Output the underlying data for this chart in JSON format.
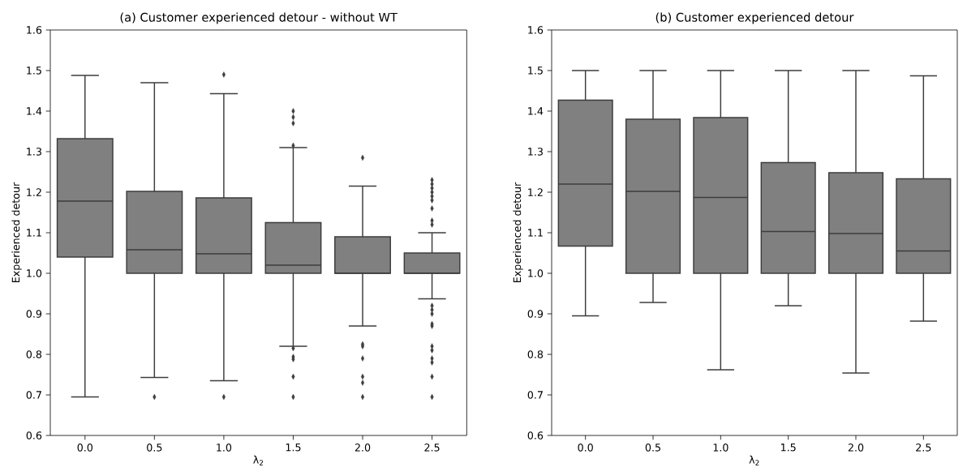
{
  "chart_data": [
    {
      "type": "box",
      "title": "(a) Customer experienced detour - without WT",
      "xlabel": "λ$_{2}$",
      "ylabel": "Experienced detour",
      "categories": [
        "0.0",
        "0.5",
        "1.0",
        "1.5",
        "2.0",
        "2.5"
      ],
      "ylim": [
        0.6,
        1.6
      ],
      "yticks": [
        0.6,
        0.7,
        0.8,
        0.9,
        {
          "value": 1.0,
          "label": "1.0"
        },
        1.1,
        1.2,
        1.3,
        1.4,
        1.5,
        1.6
      ],
      "marker": "diamond",
      "series": [
        {
          "color": "#808080",
          "boxes": [
            {
              "low": 0.695,
              "q1": 1.04,
              "median": 1.178,
              "q3": 1.332,
              "high": 1.488
            },
            {
              "low": 0.743,
              "q1": 1.0,
              "median": 1.058,
              "q3": 1.202,
              "high": 1.47,
              "outliers": [
                0.695
              ]
            },
            {
              "low": 0.735,
              "q1": 1.0,
              "median": 1.048,
              "q3": 1.186,
              "high": 1.443,
              "outliers": [
                1.49,
                0.695
              ]
            },
            {
              "low": 0.82,
              "q1": 1.0,
              "median": 1.02,
              "q3": 1.125,
              "high": 1.31,
              "outliers": [
                1.4,
                1.385,
                1.37,
                1.315,
                0.815,
                0.794,
                0.788,
                0.745,
                0.695
              ]
            },
            {
              "low": 0.87,
              "q1": 1.0,
              "median": 1.0,
              "q3": 1.09,
              "high": 1.215,
              "outliers": [
                1.285,
                0.825,
                0.82,
                0.79,
                0.745,
                0.73,
                0.695
              ]
            },
            {
              "low": 0.937,
              "q1": 1.0,
              "median": 1.0,
              "q3": 1.05,
              "high": 1.1,
              "outliers": [
                1.23,
                1.22,
                1.21,
                1.2,
                1.19,
                1.18,
                1.16,
                1.13,
                1.12,
                0.92,
                0.91,
                0.9,
                0.875,
                0.87,
                0.82,
                0.81,
                0.79,
                0.78,
                0.745,
                0.695
              ]
            }
          ]
        }
      ]
    },
    {
      "type": "box",
      "title": "(b) Customer experienced detour",
      "xlabel": "λ$_{2}$",
      "ylabel": "Experienced detour",
      "categories": [
        "0.0",
        "0.5",
        "1.0",
        "1.5",
        "2.0",
        "2.5"
      ],
      "ylim": [
        0.6,
        1.6
      ],
      "yticks": [
        0.6,
        0.7,
        0.8,
        0.9,
        {
          "value": 1.0,
          "label": "1.0"
        },
        1.1,
        1.2,
        1.3,
        1.4,
        1.5,
        1.6
      ],
      "series": [
        {
          "color": "#808080",
          "boxes": [
            {
              "low": 0.895,
              "q1": 1.067,
              "median": 1.22,
              "q3": 1.427,
              "high": 1.5
            },
            {
              "low": 0.928,
              "q1": 1.0,
              "median": 1.202,
              "q3": 1.38,
              "high": 1.5
            },
            {
              "low": 0.762,
              "q1": 1.0,
              "median": 1.187,
              "q3": 1.384,
              "high": 1.5
            },
            {
              "low": 0.92,
              "q1": 1.0,
              "median": 1.103,
              "q3": 1.273,
              "high": 1.5
            },
            {
              "low": 0.754,
              "q1": 1.0,
              "median": 1.098,
              "q3": 1.248,
              "high": 1.5
            },
            {
              "low": 0.882,
              "q1": 1.0,
              "median": 1.055,
              "q3": 1.233,
              "high": 1.487
            }
          ]
        }
      ]
    }
  ]
}
